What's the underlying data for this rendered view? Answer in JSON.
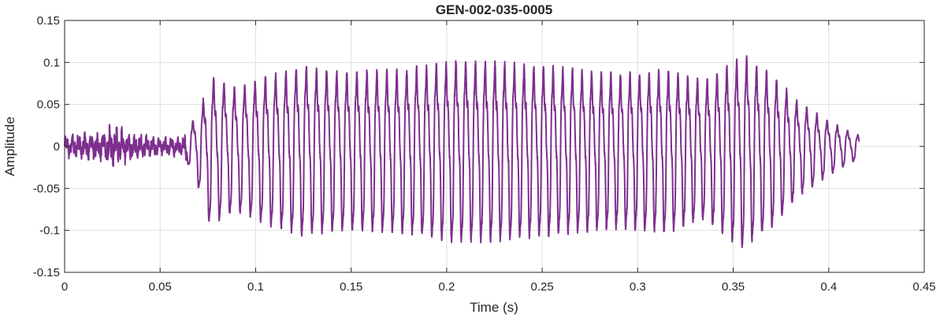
{
  "chart_data": {
    "type": "line",
    "title": "GEN-002-035-0005",
    "xlabel": "Time (s)",
    "ylabel": "Amplitude",
    "xlim": [
      0,
      0.45
    ],
    "ylim": [
      -0.15,
      0.15
    ],
    "x_ticks": [
      0,
      0.05,
      0.1,
      0.15,
      0.2,
      0.25,
      0.3,
      0.35,
      0.4,
      0.45
    ],
    "x_tick_labels": [
      "0",
      "0.05",
      "0.1",
      "0.15",
      "0.2",
      "0.25",
      "0.3",
      "0.35",
      "0.4",
      "0.45"
    ],
    "y_ticks": [
      -0.15,
      -0.1,
      -0.05,
      0,
      0.05,
      0.1,
      0.15
    ],
    "y_tick_labels": [
      "-0.15",
      "-0.1",
      "-0.05",
      "0",
      "0.05",
      "0.1",
      "0.15"
    ],
    "grid": true,
    "series": [
      {
        "color": "#7E2F8E",
        "signal": {
          "duration": 0.416,
          "envelope": [
            [
              0.0,
              0.01
            ],
            [
              0.02,
              0.013
            ],
            [
              0.025,
              0.02
            ],
            [
              0.035,
              0.012
            ],
            [
              0.05,
              0.008
            ],
            [
              0.062,
              0.008
            ],
            [
              0.067,
              0.035
            ],
            [
              0.072,
              0.06
            ],
            [
              0.076,
              0.095
            ],
            [
              0.09,
              0.08
            ],
            [
              0.105,
              0.095
            ],
            [
              0.125,
              0.11
            ],
            [
              0.145,
              0.103
            ],
            [
              0.175,
              0.105
            ],
            [
              0.205,
              0.118
            ],
            [
              0.23,
              0.115
            ],
            [
              0.26,
              0.108
            ],
            [
              0.29,
              0.1
            ],
            [
              0.315,
              0.105
            ],
            [
              0.335,
              0.09
            ],
            [
              0.355,
              0.125
            ],
            [
              0.37,
              0.1
            ],
            [
              0.385,
              0.06
            ],
            [
              0.4,
              0.035
            ],
            [
              0.416,
              0.015
            ]
          ],
          "pitch_hz": [
            [
              0.0,
              180
            ],
            [
              0.1,
              185
            ],
            [
              0.2,
              195
            ],
            [
              0.3,
              200
            ],
            [
              0.416,
              185
            ]
          ]
        }
      }
    ]
  }
}
